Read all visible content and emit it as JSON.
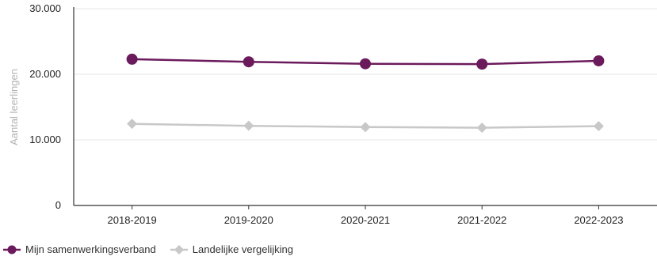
{
  "chart_data": {
    "type": "line",
    "categories": [
      "2018-2019",
      "2019-2020",
      "2020-2021",
      "2021-2022",
      "2022-2023"
    ],
    "ylabel": "Aantal leerlingen",
    "ylim": [
      0,
      30000
    ],
    "yticks": [
      {
        "value": 0,
        "label": "0"
      },
      {
        "value": 10000,
        "label": "10.000"
      },
      {
        "value": 20000,
        "label": "20.000"
      },
      {
        "value": 30000,
        "label": "30.000"
      }
    ],
    "grid": true,
    "legend_position": "bottom-left",
    "series": [
      {
        "name": "Mijn samenwerkingsverband",
        "color": "#6b1a5c",
        "marker": "circle",
        "values": [
          22300,
          21900,
          21600,
          21550,
          22050
        ]
      },
      {
        "name": "Landelijke vergelijking",
        "color": "#c8c8c8",
        "marker": "diamond",
        "values": [
          12450,
          12150,
          11950,
          11850,
          12100
        ]
      }
    ]
  }
}
